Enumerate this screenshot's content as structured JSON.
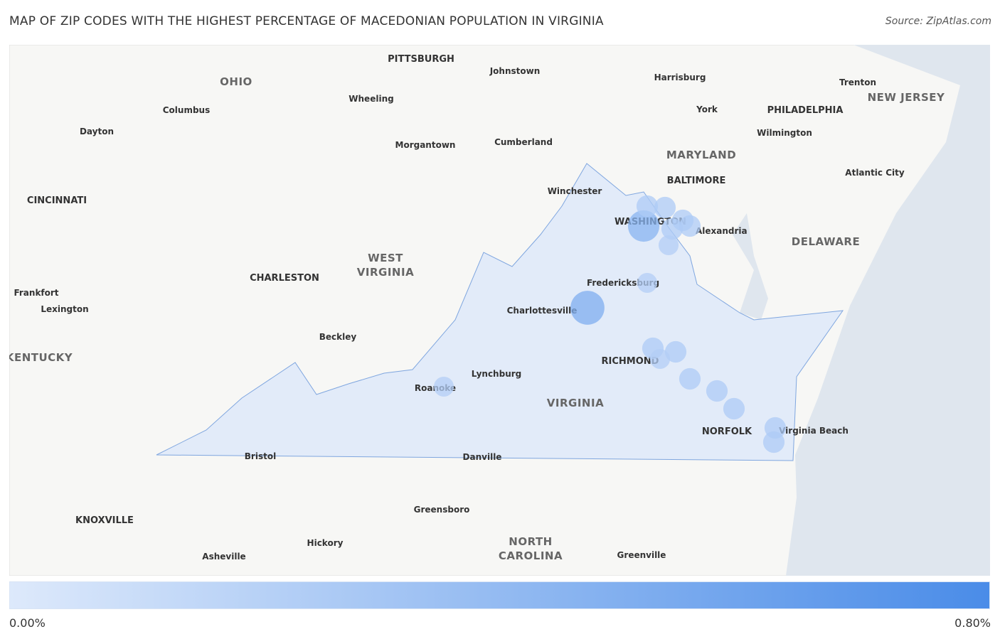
{
  "header": {
    "title": "MAP OF ZIP CODES WITH THE HIGHEST PERCENTAGE OF MACEDONIAN POPULATION IN VIRGINIA",
    "source": "Source: ZipAtlas.com"
  },
  "map": {
    "places": [
      "PITTSBURGH",
      "Johnstown",
      "OHIO",
      "Harrisburg",
      "Trenton",
      "NEW JERSEY",
      "Columbus",
      "Wheeling",
      "York",
      "PHILADELPHIA",
      "Dayton",
      "Wilmington",
      "Morgantown",
      "Cumberland",
      "MARYLAND",
      "Atlantic City",
      "BALTIMORE",
      "CINCINNATI",
      "Winchester",
      "WASHINGTON",
      "Alexandria",
      "DELAWARE",
      "WEST",
      "VIRGINIA",
      "CHARLESTON",
      "Frankfort",
      "Fredericksburg",
      "Lexington",
      "Charlottesville",
      "Beckley",
      "KENTUCKY",
      "RICHMOND",
      "Lynchburg",
      "Roanoke",
      "VIRGINIA",
      "NORFOLK",
      "Virginia Beach",
      "Bristol",
      "Danville",
      "Greensboro",
      "KNOXVILLE",
      "NORTH",
      "CAROLINA",
      "Hickory",
      "Asheville",
      "Greenville"
    ],
    "markers": [
      0.46,
      0.51,
      0.26,
      0.26,
      0.26,
      0.26,
      0.26,
      0.23,
      0.23,
      0.26,
      0.26,
      0.23,
      0.26,
      0.26,
      0.26,
      0.26,
      0.26,
      0.23
    ]
  },
  "legend": {
    "min": {
      "value": 0,
      "label": "0.00%"
    },
    "max": {
      "value": 0.8,
      "label": "0.80%"
    }
  }
}
